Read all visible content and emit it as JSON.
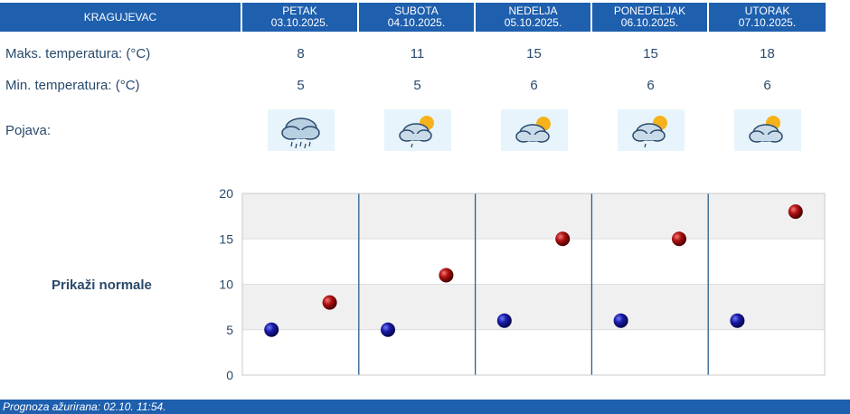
{
  "header": {
    "city": "KRAGUJEVAC",
    "days": [
      {
        "name": "PETAK",
        "date": "03.10.2025."
      },
      {
        "name": "SUBOTA",
        "date": "04.10.2025."
      },
      {
        "name": "NEDELJA",
        "date": "05.10.2025."
      },
      {
        "name": "PONEDELJAK",
        "date": "06.10.2025."
      },
      {
        "name": "UTORAK",
        "date": "07.10.2025."
      }
    ]
  },
  "rows": {
    "max_label": "Maks. temperatura: (°C)",
    "min_label": "Min. temperatura: (°C)",
    "phenomenon_label": "Pojava:",
    "max_values": [
      "8",
      "11",
      "15",
      "15",
      "18"
    ],
    "min_values": [
      "5",
      "5",
      "6",
      "6",
      "6"
    ],
    "icons": [
      "cloud-rain-icon",
      "partly-cloudy-light-rain-icon",
      "partly-cloudy-icon",
      "partly-cloudy-light-rain-icon",
      "partly-cloudy-icon"
    ]
  },
  "normals_link": "Prikaži normale",
  "chart_data": {
    "type": "scatter",
    "categories": [
      "PETAK",
      "SUBOTA",
      "NEDELJA",
      "PONEDELJAK",
      "UTORAK"
    ],
    "ylim": [
      0,
      20
    ],
    "yticks": [
      "0",
      "5",
      "10",
      "15",
      "20"
    ],
    "series": [
      {
        "color": "#1a1aa8",
        "values": [
          5,
          5,
          6,
          6,
          6
        ]
      },
      {
        "color": "#b01010",
        "values": [
          8,
          11,
          15,
          15,
          18
        ]
      }
    ],
    "grid": true
  },
  "footer": {
    "updated": "Prognoza ažurirana:  02.10. 11:54."
  },
  "colors": {
    "header_bg": "#1e5fae",
    "text": "#2a4a6b",
    "min_marker": "#1a1aa8",
    "max_marker": "#b01010"
  }
}
